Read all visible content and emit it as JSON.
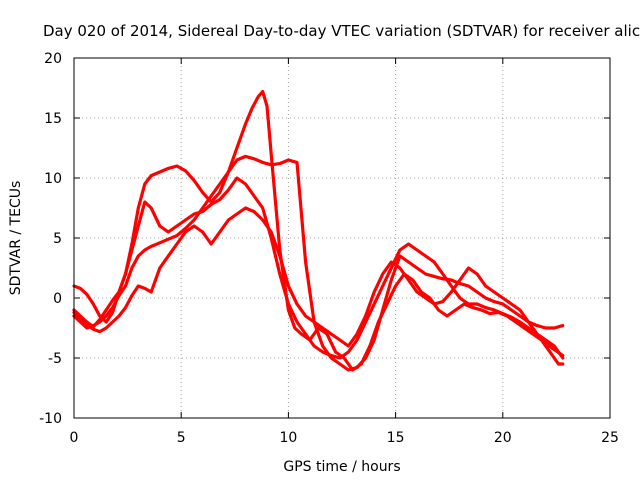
{
  "chart_data": {
    "type": "line",
    "title": "Day 020 of 2014, Sidereal Day-to-day VTEC variation (SDTVAR) for receiver alic",
    "xlabel": "GPS time / hours",
    "ylabel": "SDTVAR / TECUs",
    "xlim": [
      0,
      25
    ],
    "ylim": [
      -10,
      20
    ],
    "xticks": [
      "0",
      "5",
      "10",
      "15",
      "20",
      "25"
    ],
    "yticks": [
      "-10",
      "-5",
      "0",
      "5",
      "10",
      "15",
      "20"
    ],
    "grid": true,
    "color": "#ff0000",
    "marker": "plus",
    "series": [
      {
        "x": [
          0.0,
          0.3,
          0.6,
          0.9,
          1.2,
          1.5,
          1.8,
          2.1,
          2.4,
          2.7,
          3.0,
          3.3,
          3.6,
          4.0,
          4.4,
          4.8,
          5.2,
          5.6,
          6.0,
          6.4,
          6.8,
          7.2,
          7.6,
          8.0,
          8.3,
          8.6,
          8.8,
          9.0,
          9.2,
          9.4,
          9.6,
          9.8,
          10.0,
          10.3,
          10.6,
          11.0,
          11.4,
          11.8,
          12.2,
          12.6,
          13.0,
          13.4,
          13.8,
          14.2,
          14.6,
          15.0,
          15.4,
          15.8,
          16.2,
          16.6,
          17.0,
          17.4,
          17.8,
          18.2,
          18.6,
          19.0,
          19.4,
          19.8,
          20.2,
          20.6,
          21.0,
          21.4,
          21.8,
          22.2,
          22.6,
          22.8
        ],
        "y": [
          1.0,
          0.8,
          0.3,
          -0.5,
          -1.5,
          -2.0,
          -1.2,
          0.5,
          2.0,
          4.5,
          7.5,
          9.5,
          10.2,
          10.5,
          10.8,
          11.0,
          10.6,
          9.8,
          8.8,
          8.0,
          8.8,
          10.5,
          12.5,
          14.5,
          15.8,
          16.8,
          17.2,
          16.0,
          12.0,
          8.0,
          4.0,
          1.5,
          -1.0,
          -2.5,
          -3.0,
          -3.5,
          -2.5,
          -3.0,
          -4.5,
          -5.0,
          -6.0,
          -5.5,
          -4.0,
          -2.0,
          -0.5,
          1.0,
          2.0,
          1.5,
          0.5,
          0.0,
          -1.0,
          -1.5,
          -1.0,
          -0.5,
          -0.8,
          -1.0,
          -1.3,
          -1.2,
          -1.5,
          -2.0,
          -2.5,
          -3.0,
          -3.5,
          -4.5,
          -5.5,
          -5.5
        ]
      },
      {
        "x": [
          0.0,
          0.3,
          0.6,
          0.9,
          1.2,
          1.5,
          1.8,
          2.1,
          2.4,
          2.7,
          3.0,
          3.3,
          3.6,
          4.0,
          4.4,
          4.8,
          5.2,
          5.6,
          6.0,
          6.4,
          6.8,
          7.2,
          7.6,
          8.0,
          8.4,
          8.8,
          9.2,
          9.6,
          10.0,
          10.4,
          10.8,
          11.2,
          11.6,
          12.0,
          12.4,
          12.8,
          13.2,
          13.6,
          14.0,
          14.4,
          14.8,
          15.2,
          15.6,
          16.0,
          16.4,
          16.8,
          17.2,
          17.6,
          18.0,
          18.4,
          18.8,
          19.2,
          19.6,
          20.0,
          20.4,
          20.8,
          21.2,
          21.6,
          22.0,
          22.4,
          22.8
        ],
        "y": [
          -1.5,
          -2.0,
          -2.5,
          -2.3,
          -2.0,
          -1.5,
          -0.8,
          0.2,
          1.0,
          2.5,
          3.5,
          4.0,
          4.3,
          4.6,
          4.9,
          5.2,
          5.8,
          6.5,
          7.5,
          8.5,
          9.5,
          10.5,
          11.5,
          11.8,
          11.6,
          11.3,
          11.1,
          11.2,
          11.5,
          11.3,
          3.0,
          -2.0,
          -4.0,
          -5.0,
          -5.5,
          -6.0,
          -5.8,
          -5.0,
          -3.5,
          -1.0,
          1.5,
          3.5,
          3.0,
          2.5,
          2.0,
          1.8,
          1.6,
          1.5,
          1.2,
          1.0,
          0.5,
          0.0,
          -0.3,
          -0.5,
          -1.0,
          -1.5,
          -2.0,
          -2.3,
          -2.5,
          -2.5,
          -2.3
        ]
      },
      {
        "x": [
          0.0,
          0.3,
          0.6,
          0.9,
          1.2,
          1.5,
          1.8,
          2.1,
          2.4,
          2.7,
          3.0,
          3.3,
          3.6,
          4.0,
          4.4,
          4.8,
          5.2,
          5.6,
          6.0,
          6.4,
          6.8,
          7.2,
          7.6,
          8.0,
          8.4,
          8.8,
          9.2,
          9.6,
          10.0,
          10.4,
          10.8,
          11.2,
          11.6,
          12.0,
          12.4,
          12.8,
          13.2,
          13.6,
          14.0,
          14.4,
          14.8,
          15.2,
          15.6,
          16.0,
          16.4,
          16.8,
          17.2,
          17.6,
          18.0,
          18.4,
          18.8,
          19.2,
          19.6,
          20.0,
          20.4,
          20.8,
          21.2,
          21.6,
          22.0,
          22.4,
          22.8
        ],
        "y": [
          -1.2,
          -1.8,
          -2.2,
          -2.6,
          -2.8,
          -2.5,
          -2.0,
          -1.5,
          -0.8,
          0.2,
          1.0,
          0.8,
          0.5,
          2.5,
          3.5,
          4.5,
          5.5,
          6.0,
          5.5,
          4.5,
          5.5,
          6.5,
          7.0,
          7.5,
          7.2,
          6.5,
          5.5,
          3.5,
          1.0,
          -0.5,
          -1.5,
          -2.0,
          -2.5,
          -3.0,
          -3.5,
          -4.0,
          -3.0,
          -1.5,
          0.5,
          2.0,
          3.0,
          2.5,
          1.5,
          0.5,
          0.0,
          -0.5,
          -0.3,
          0.5,
          1.5,
          2.5,
          2.0,
          1.0,
          0.5,
          0.0,
          -0.5,
          -1.0,
          -2.0,
          -3.0,
          -3.8,
          -4.3,
          -4.8
        ]
      },
      {
        "x": [
          0.0,
          0.3,
          0.6,
          0.9,
          1.2,
          1.5,
          1.8,
          2.1,
          2.4,
          2.7,
          3.0,
          3.3,
          3.6,
          4.0,
          4.4,
          4.8,
          5.2,
          5.6,
          6.0,
          6.4,
          6.8,
          7.2,
          7.6,
          8.0,
          8.4,
          8.8,
          9.2,
          9.6,
          10.0,
          10.4,
          10.8,
          11.2,
          11.6,
          12.0,
          12.4,
          12.8,
          13.2,
          13.6,
          14.0,
          14.4,
          14.8,
          15.2,
          15.6,
          16.0,
          16.4,
          16.8,
          17.2,
          17.6,
          18.0,
          18.4,
          18.8,
          19.2,
          19.6,
          20.0,
          20.4,
          20.8,
          21.2,
          21.6,
          22.0,
          22.4,
          22.8
        ],
        "y": [
          -1.0,
          -1.5,
          -2.0,
          -2.4,
          -1.8,
          -1.0,
          -0.2,
          0.5,
          2.0,
          4.0,
          6.0,
          8.0,
          7.5,
          6.0,
          5.5,
          6.0,
          6.5,
          7.0,
          7.2,
          7.8,
          8.2,
          9.0,
          10.0,
          9.5,
          8.5,
          7.5,
          5.0,
          2.0,
          -0.5,
          -2.0,
          -3.0,
          -4.0,
          -4.5,
          -4.8,
          -5.0,
          -4.5,
          -3.5,
          -2.0,
          -0.5,
          1.0,
          2.5,
          4.0,
          4.5,
          4.0,
          3.5,
          3.0,
          2.0,
          1.0,
          0.0,
          -0.5,
          -0.5,
          -0.8,
          -1.0,
          -1.3,
          -1.6,
          -2.0,
          -2.5,
          -3.0,
          -3.5,
          -4.0,
          -5.0
        ]
      }
    ]
  }
}
